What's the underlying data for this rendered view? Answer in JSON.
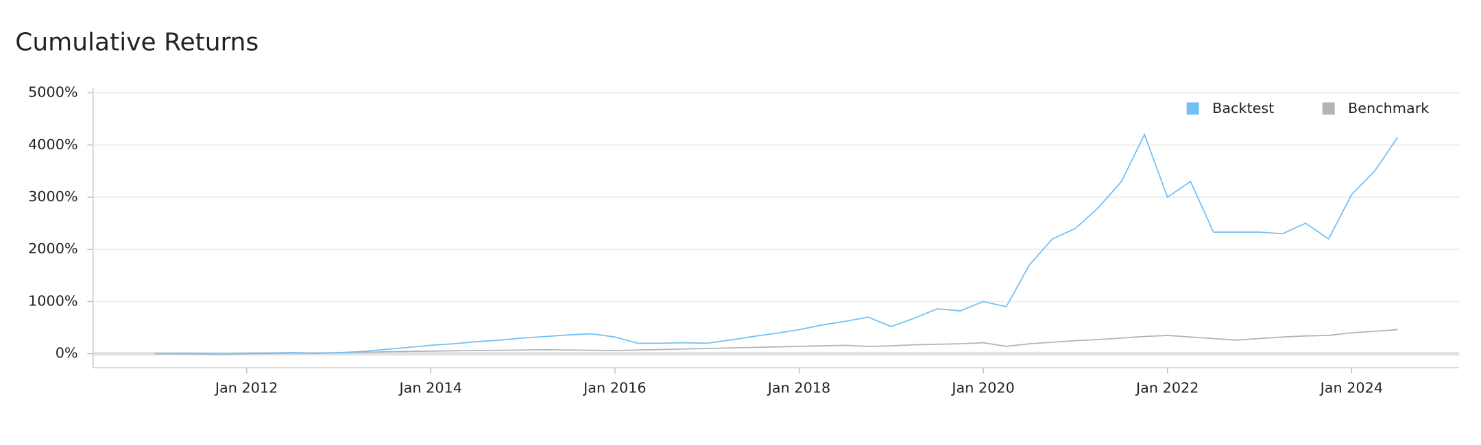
{
  "chart_data": {
    "type": "line",
    "title": "Cumulative Returns",
    "x": [
      "2011-01",
      "2011-04",
      "2011-07",
      "2011-10",
      "2012-01",
      "2012-04",
      "2012-07",
      "2012-10",
      "2013-01",
      "2013-04",
      "2013-07",
      "2013-10",
      "2014-01",
      "2014-04",
      "2014-07",
      "2014-10",
      "2015-01",
      "2015-04",
      "2015-07",
      "2015-10",
      "2016-01",
      "2016-04",
      "2016-07",
      "2016-10",
      "2017-01",
      "2017-04",
      "2017-07",
      "2017-10",
      "2018-01",
      "2018-04",
      "2018-07",
      "2018-10",
      "2019-01",
      "2019-04",
      "2019-07",
      "2019-10",
      "2020-01",
      "2020-04",
      "2020-07",
      "2020-10",
      "2021-01",
      "2021-04",
      "2021-07",
      "2021-10",
      "2022-01",
      "2022-04",
      "2022-07",
      "2022-10",
      "2023-01",
      "2023-04",
      "2023-07",
      "2023-10",
      "2024-01",
      "2024-04",
      "2024-07"
    ],
    "series": [
      {
        "name": "Backtest",
        "color": "#74c0f4",
        "values": [
          0,
          2,
          0,
          -8,
          5,
          10,
          20,
          5,
          20,
          40,
          80,
          120,
          160,
          190,
          230,
          260,
          300,
          330,
          360,
          380,
          320,
          200,
          200,
          210,
          200,
          260,
          330,
          390,
          460,
          550,
          620,
          700,
          520,
          680,
          860,
          820,
          1000,
          900,
          1700,
          2200,
          2400,
          2800,
          3300,
          4200,
          3000,
          3300,
          2330,
          2330,
          2330,
          2300,
          2500,
          2200,
          3050,
          3500,
          4150
        ]
      },
      {
        "name": "Benchmark",
        "color": "#b0b5ba",
        "values": [
          0,
          0,
          -5,
          -10,
          0,
          5,
          10,
          10,
          15,
          25,
          35,
          45,
          50,
          55,
          60,
          65,
          70,
          75,
          70,
          65,
          60,
          70,
          80,
          90,
          100,
          110,
          120,
          130,
          140,
          150,
          160,
          140,
          150,
          170,
          180,
          190,
          210,
          140,
          190,
          220,
          250,
          270,
          300,
          330,
          350,
          320,
          290,
          260,
          290,
          320,
          340,
          350,
          400,
          430,
          460
        ]
      }
    ],
    "xlim": [
      "2010-05",
      "2025-03"
    ],
    "xticks": [
      {
        "value": "2012-01",
        "label": "Jan 2012"
      },
      {
        "value": "2014-01",
        "label": "Jan 2014"
      },
      {
        "value": "2016-01",
        "label": "Jan 2016"
      },
      {
        "value": "2018-01",
        "label": "Jan 2018"
      },
      {
        "value": "2020-01",
        "label": "Jan 2020"
      },
      {
        "value": "2022-01",
        "label": "Jan 2022"
      },
      {
        "value": "2024-01",
        "label": "Jan 2024"
      }
    ],
    "ylim": [
      -270,
      5090
    ],
    "yticks": [
      {
        "value": 0,
        "label": "0%"
      },
      {
        "value": 1000,
        "label": "1000%"
      },
      {
        "value": 2000,
        "label": "2000%"
      },
      {
        "value": 3000,
        "label": "3000%"
      },
      {
        "value": 4000,
        "label": "4000%"
      },
      {
        "value": 5000,
        "label": "5000%"
      }
    ],
    "grid": true,
    "legend": "top-right"
  }
}
